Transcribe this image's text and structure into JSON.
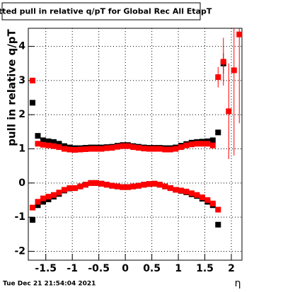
{
  "chart_data": {
    "type": "scatter",
    "title": "Fitted pull in relative q/pT for Global Rec All EtapT",
    "y_label": "pull in relative q/pT",
    "x_label": "η",
    "timestamp": "Tue Dec 21 21:54:04 2021",
    "x": [
      -1.75,
      -1.65,
      -1.55,
      -1.45,
      -1.35,
      -1.25,
      -1.15,
      -1.05,
      -0.95,
      -0.85,
      -0.75,
      -0.65,
      -0.55,
      -0.45,
      -0.35,
      -0.25,
      -0.15,
      -0.05,
      0.05,
      0.15,
      0.25,
      0.35,
      0.45,
      0.55,
      0.65,
      0.75,
      0.85,
      0.95,
      1.05,
      1.15,
      1.25,
      1.35,
      1.45,
      1.55,
      1.65,
      1.75,
      1.85,
      1.95,
      2.05,
      2.15
    ],
    "series": [
      {
        "color": "#000000",
        "values": [
          2.35,
          1.38,
          1.25,
          1.22,
          1.2,
          1.15,
          1.08,
          1.04,
          1.02,
          1.02,
          1.03,
          1.04,
          1.04,
          1.04,
          1.05,
          1.06,
          1.09,
          1.11,
          1.11,
          1.08,
          1.06,
          1.04,
          1.03,
          1.03,
          1.03,
          1.02,
          1.02,
          1.04,
          1.09,
          1.14,
          1.18,
          1.2,
          1.21,
          1.22,
          1.25,
          1.48,
          3.5,
          null,
          null,
          null
        ],
        "errors": [
          0,
          0,
          0,
          0,
          0,
          0,
          0,
          0,
          0,
          0,
          0,
          0,
          0,
          0,
          0,
          0,
          0,
          0,
          0,
          0,
          0,
          0,
          0,
          0,
          0,
          0,
          0,
          0,
          0,
          0,
          0,
          0,
          0,
          0,
          0,
          0,
          0.3,
          0,
          0,
          0
        ]
      },
      {
        "color": "#ff0000",
        "values": [
          3.0,
          1.15,
          1.12,
          1.1,
          1.08,
          1.05,
          1.0,
          0.98,
          0.97,
          0.98,
          0.99,
          1.0,
          1.0,
          1.0,
          1.02,
          1.03,
          1.06,
          1.08,
          1.08,
          1.05,
          1.03,
          1.01,
          1.0,
          1.0,
          1.0,
          0.98,
          0.98,
          1.0,
          1.05,
          1.1,
          1.13,
          1.15,
          1.15,
          1.15,
          1.1,
          3.1,
          3.55,
          2.1,
          3.3,
          4.35
        ],
        "errors": [
          0,
          0,
          0,
          0,
          0,
          0,
          0,
          0,
          0,
          0,
          0,
          0,
          0,
          0,
          0,
          0,
          0,
          0,
          0,
          0,
          0,
          0,
          0,
          0,
          0,
          0,
          0,
          0,
          0,
          0,
          0,
          0,
          0,
          0,
          0,
          0.3,
          0.7,
          1.4,
          2.5,
          2.6
        ]
      },
      {
        "color": "#000000",
        "values": [
          -1.08,
          -0.65,
          -0.55,
          -0.48,
          -0.4,
          -0.32,
          -0.22,
          -0.16,
          -0.15,
          -0.1,
          -0.05,
          0,
          0,
          -0.02,
          -0.05,
          -0.08,
          -0.1,
          -0.12,
          -0.12,
          -0.1,
          -0.08,
          -0.05,
          -0.03,
          -0.02,
          -0.05,
          -0.1,
          -0.15,
          -0.2,
          -0.23,
          -0.27,
          -0.33,
          -0.38,
          -0.46,
          -0.55,
          -0.65,
          -1.22,
          null,
          null,
          null,
          null
        ],
        "errors": [
          0,
          0,
          0,
          0,
          0,
          0,
          0,
          0,
          0,
          0,
          0,
          0,
          0,
          0,
          0,
          0,
          0,
          0,
          0,
          0,
          0,
          0,
          0,
          0,
          0,
          0,
          0,
          0,
          0,
          0,
          0,
          0,
          0,
          0,
          0,
          0,
          0,
          0,
          0,
          0
        ]
      },
      {
        "color": "#ff0000",
        "values": [
          -0.72,
          -0.55,
          -0.45,
          -0.4,
          -0.35,
          -0.28,
          -0.2,
          -0.15,
          -0.15,
          -0.1,
          -0.05,
          0,
          0,
          -0.02,
          -0.05,
          -0.08,
          -0.1,
          -0.12,
          -0.12,
          -0.1,
          -0.08,
          -0.05,
          -0.03,
          -0.02,
          -0.05,
          -0.1,
          -0.15,
          -0.2,
          -0.22,
          -0.25,
          -0.3,
          -0.35,
          -0.42,
          -0.5,
          -0.6,
          -0.78,
          null,
          null,
          null,
          null
        ],
        "errors": [
          0,
          0,
          0,
          0,
          0,
          0,
          0,
          0,
          0,
          0,
          0,
          0,
          0,
          0,
          0,
          0,
          0,
          0,
          0,
          0,
          0,
          0,
          0,
          0,
          0,
          0,
          0,
          0,
          0,
          0,
          0,
          0,
          0,
          0,
          0,
          0,
          0,
          0,
          0,
          0
        ]
      }
    ],
    "xlim": [
      -1.83,
      2.2
    ],
    "ylim": [
      -2.26,
      4.53
    ],
    "xticks": [
      -1.5,
      -1,
      -0.5,
      0,
      0.5,
      1,
      1.5,
      2
    ],
    "yticks": [
      -2,
      -1,
      0,
      1,
      2,
      3,
      4
    ],
    "grid": true
  }
}
